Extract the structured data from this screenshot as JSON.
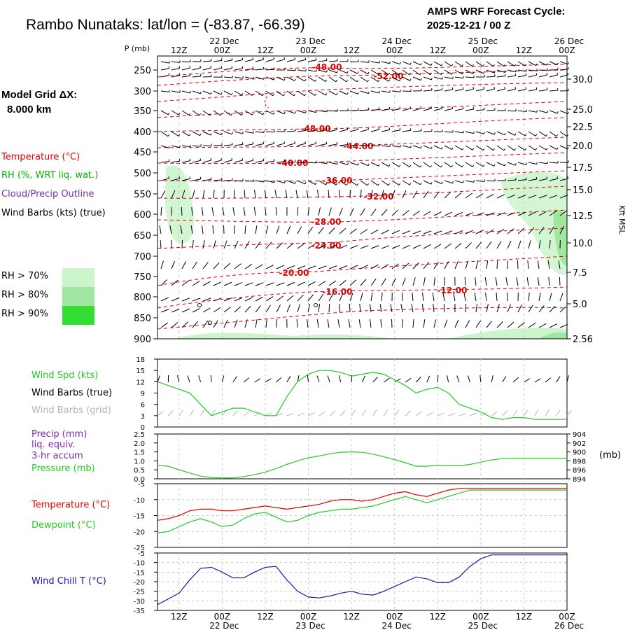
{
  "header": {
    "title": "Rambo Nunataks:  lat/lon = (-83.87, -66.39)",
    "cycle_line1": "AMPS WRF Forecast Cycle:",
    "cycle_line2": "2025-12-21 / 00  Z"
  },
  "model_grid": {
    "label": "Model Grid ΔX:",
    "value": "8.000 km"
  },
  "colors": {
    "temperature": "#e00000",
    "rh_text": "#00b400",
    "cloud_outline": "#7a2aa8",
    "wind_spd": "#22cc22",
    "dewpoint": "#22cc22",
    "pressure": "#22cc22",
    "windchill": "#1a1aa8",
    "grid_barbs": "#b4b4b4",
    "rh70": "#ccf5cc",
    "rh80": "#a0e6a0",
    "rh90": "#33dd33"
  },
  "legend": {
    "temperature": "Temperature (°C)",
    "rh": "RH (%, WRT liq. wat.)",
    "cloud": "Cloud/Precip Outline",
    "barbs": "Wind Barbs (kts) (true)",
    "rh70": "RH > 70%",
    "rh80": "RH > 80%",
    "rh90": "RH > 90%"
  },
  "panel_labels": {
    "wind_spd": "Wind Spd (kts)",
    "wind_barbs_true": "Wind Barbs (true)",
    "wind_barbs_grid": "Wind Barbs (grid)",
    "precip": "Precip (mm)",
    "liq": "liq. equiv.",
    "accum": "3-hr accum",
    "pressure": "Pressure (mb)",
    "pressure_unit": "(mb)",
    "temperature": "Temperature (°C)",
    "dewpoint": "Dewpoint (°C)",
    "windchill": "Wind Chill T (°C)"
  },
  "chart_data": {
    "type": "line",
    "x_hours": [
      6,
      9,
      12,
      15,
      18,
      21,
      24,
      27,
      30,
      33,
      36,
      39,
      42,
      45,
      48,
      51,
      54,
      57,
      60,
      63,
      66,
      69,
      72,
      75,
      78,
      81,
      84,
      87,
      90,
      93,
      96,
      99,
      102,
      105,
      108,
      111,
      114,
      117,
      120
    ],
    "time_axis": {
      "top_hours": [
        "12Z",
        "00Z",
        "12Z",
        "00Z",
        "12Z",
        "00Z",
        "12Z",
        "00Z",
        "12Z",
        "00Z"
      ],
      "top_dates": [
        "22 Dec",
        "23 Dec",
        "24 Dec",
        "25 Dec",
        "26 Dec"
      ],
      "bottom_hours": [
        "12Z",
        "00Z",
        "12Z",
        "00Z",
        "12Z",
        "00Z",
        "12Z",
        "00Z",
        "12Z",
        "00Z"
      ],
      "bottom_dates": [
        "22 Dec",
        "23 Dec",
        "24 Dec",
        "25 Dec",
        "26 Dec"
      ]
    },
    "profile": {
      "p_label": "P (mb)",
      "pressure_ticks": [
        "250",
        "300",
        "350",
        "400",
        "450",
        "500",
        "550",
        "600",
        "650",
        "700",
        "750",
        "800",
        "850",
        "900"
      ],
      "height_ticks": [
        "30.0",
        "25.0",
        "22.5",
        "20.0",
        "17.5",
        "15.0",
        "12.5",
        "10.0",
        "7.5",
        "5.0",
        "2.56"
      ],
      "height_axis_label": "Kft MSL",
      "isotherm_labels": [
        "-48.00",
        "-52.00",
        "-48.00",
        "-44.00",
        "-40.00",
        "-36.00",
        "-32.00",
        "-28.00",
        "-24.00",
        "-20.00",
        "-16.00",
        "-12.00"
      ]
    },
    "wind_speed": {
      "ylim": [
        0,
        18
      ],
      "y_ticks": [
        "18",
        "15",
        "12",
        "9",
        "6",
        "3",
        "0"
      ],
      "values": [
        12,
        11,
        10,
        9,
        6,
        3,
        4,
        5,
        5,
        4,
        3,
        3,
        8,
        12,
        14,
        15,
        15,
        14.5,
        13.5,
        14,
        14.5,
        14,
        12.5,
        11,
        9,
        10,
        10.5,
        9,
        6,
        5,
        4,
        2.5,
        2,
        2.5,
        2.5,
        2,
        2,
        2,
        2
      ]
    },
    "precip": {
      "ylim": [
        0,
        2.5
      ],
      "y_ticks": [
        "2.5",
        "2.0",
        "1.5",
        "1.0",
        "0.5",
        "0.0"
      ]
    },
    "pressure": {
      "ylim": [
        894,
        904
      ],
      "y_ticks": [
        "904",
        "902",
        "900",
        "898",
        "896",
        "894"
      ],
      "values": [
        897.0,
        896.8,
        896.0,
        895.3,
        894.6,
        894.3,
        894.2,
        894.2,
        894.5,
        894.9,
        895.5,
        896.3,
        897.2,
        898.0,
        898.7,
        899.1,
        899.6,
        899.9,
        900.0,
        899.9,
        899.5,
        898.9,
        898.3,
        897.6,
        896.8,
        896.8,
        897.0,
        896.9,
        896.9,
        897.2,
        897.7,
        898.2,
        898.5,
        898.6,
        898.6,
        898.6,
        898.6,
        898.6,
        898.6
      ]
    },
    "temp_dew": {
      "ylim": [
        -25,
        -5
      ],
      "y_ticks": [
        "-5",
        "-10",
        "-15",
        "-20",
        "-25"
      ],
      "temperature": [
        -16.5,
        -16,
        -15,
        -13.5,
        -13,
        -13,
        -13.5,
        -13.5,
        -13,
        -12.5,
        -12,
        -12.5,
        -13,
        -12.5,
        -12,
        -11.5,
        -10.5,
        -10,
        -10,
        -10.5,
        -10,
        -9,
        -8,
        -7.5,
        -8.5,
        -9,
        -8,
        -7,
        -6.5,
        -6.5,
        -6.5,
        -6.5,
        -6.5,
        -6.5,
        -6.5,
        -6.5,
        -6.5,
        -6.5,
        -6.5
      ],
      "dewpoint": [
        -20.5,
        -20,
        -18.5,
        -17,
        -16,
        -17,
        -18.5,
        -18,
        -16,
        -14.5,
        -14,
        -15.5,
        -17,
        -16.5,
        -15,
        -14,
        -13.5,
        -13,
        -13,
        -12.5,
        -12,
        -11,
        -10,
        -9,
        -10,
        -11,
        -10,
        -9,
        -8,
        -7,
        -7,
        -7,
        -7,
        -7,
        -7,
        -7,
        -7,
        -7,
        -7
      ]
    },
    "wind_chill": {
      "ylim": [
        -35,
        -5
      ],
      "y_ticks": [
        "-5",
        "-10",
        "-15",
        "-20",
        "-25",
        "-30",
        "-35"
      ],
      "values": [
        -32,
        -29,
        -26,
        -19,
        -13,
        -12.5,
        -15,
        -18,
        -18,
        -15,
        -12.5,
        -12,
        -19,
        -25,
        -28,
        -28.5,
        -27.5,
        -26,
        -25,
        -26.5,
        -27,
        -25,
        -22.5,
        -20,
        -17.5,
        -18.5,
        -20.5,
        -20.5,
        -17.5,
        -12,
        -8,
        -6,
        -6,
        -6,
        -6,
        -6,
        -6,
        -6,
        -6
      ]
    }
  }
}
